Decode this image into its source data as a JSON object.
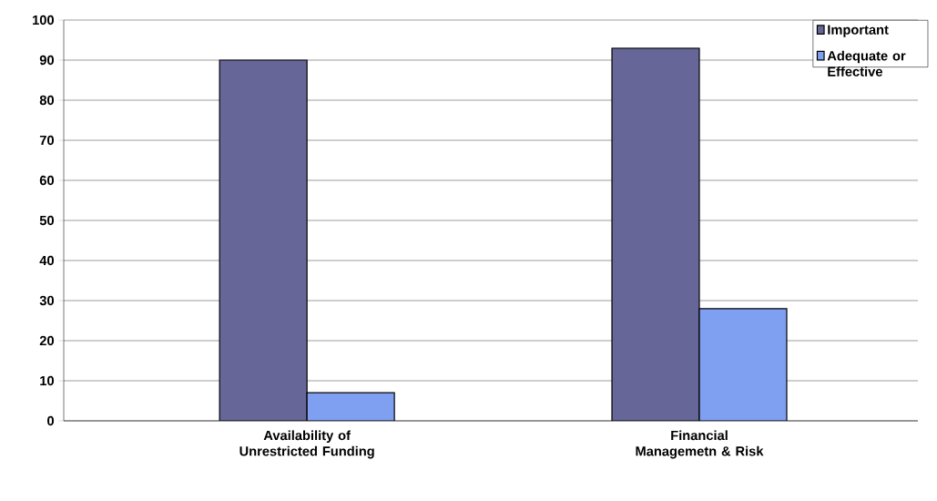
{
  "chart_data": {
    "type": "bar",
    "categories": [
      "Availability of Unrestricted Funding",
      "Financial Managemetn & Risk"
    ],
    "series": [
      {
        "name": "Important",
        "color": "#666699",
        "values": [
          90,
          93
        ]
      },
      {
        "name": "Adequate or Effective",
        "color": "#7f9ff0",
        "values": [
          7,
          28
        ]
      }
    ],
    "ylim": [
      0,
      100
    ],
    "yticks": [
      0,
      10,
      20,
      30,
      40,
      50,
      60,
      70,
      80,
      90,
      100
    ],
    "grid": "y",
    "legend": "top right"
  }
}
